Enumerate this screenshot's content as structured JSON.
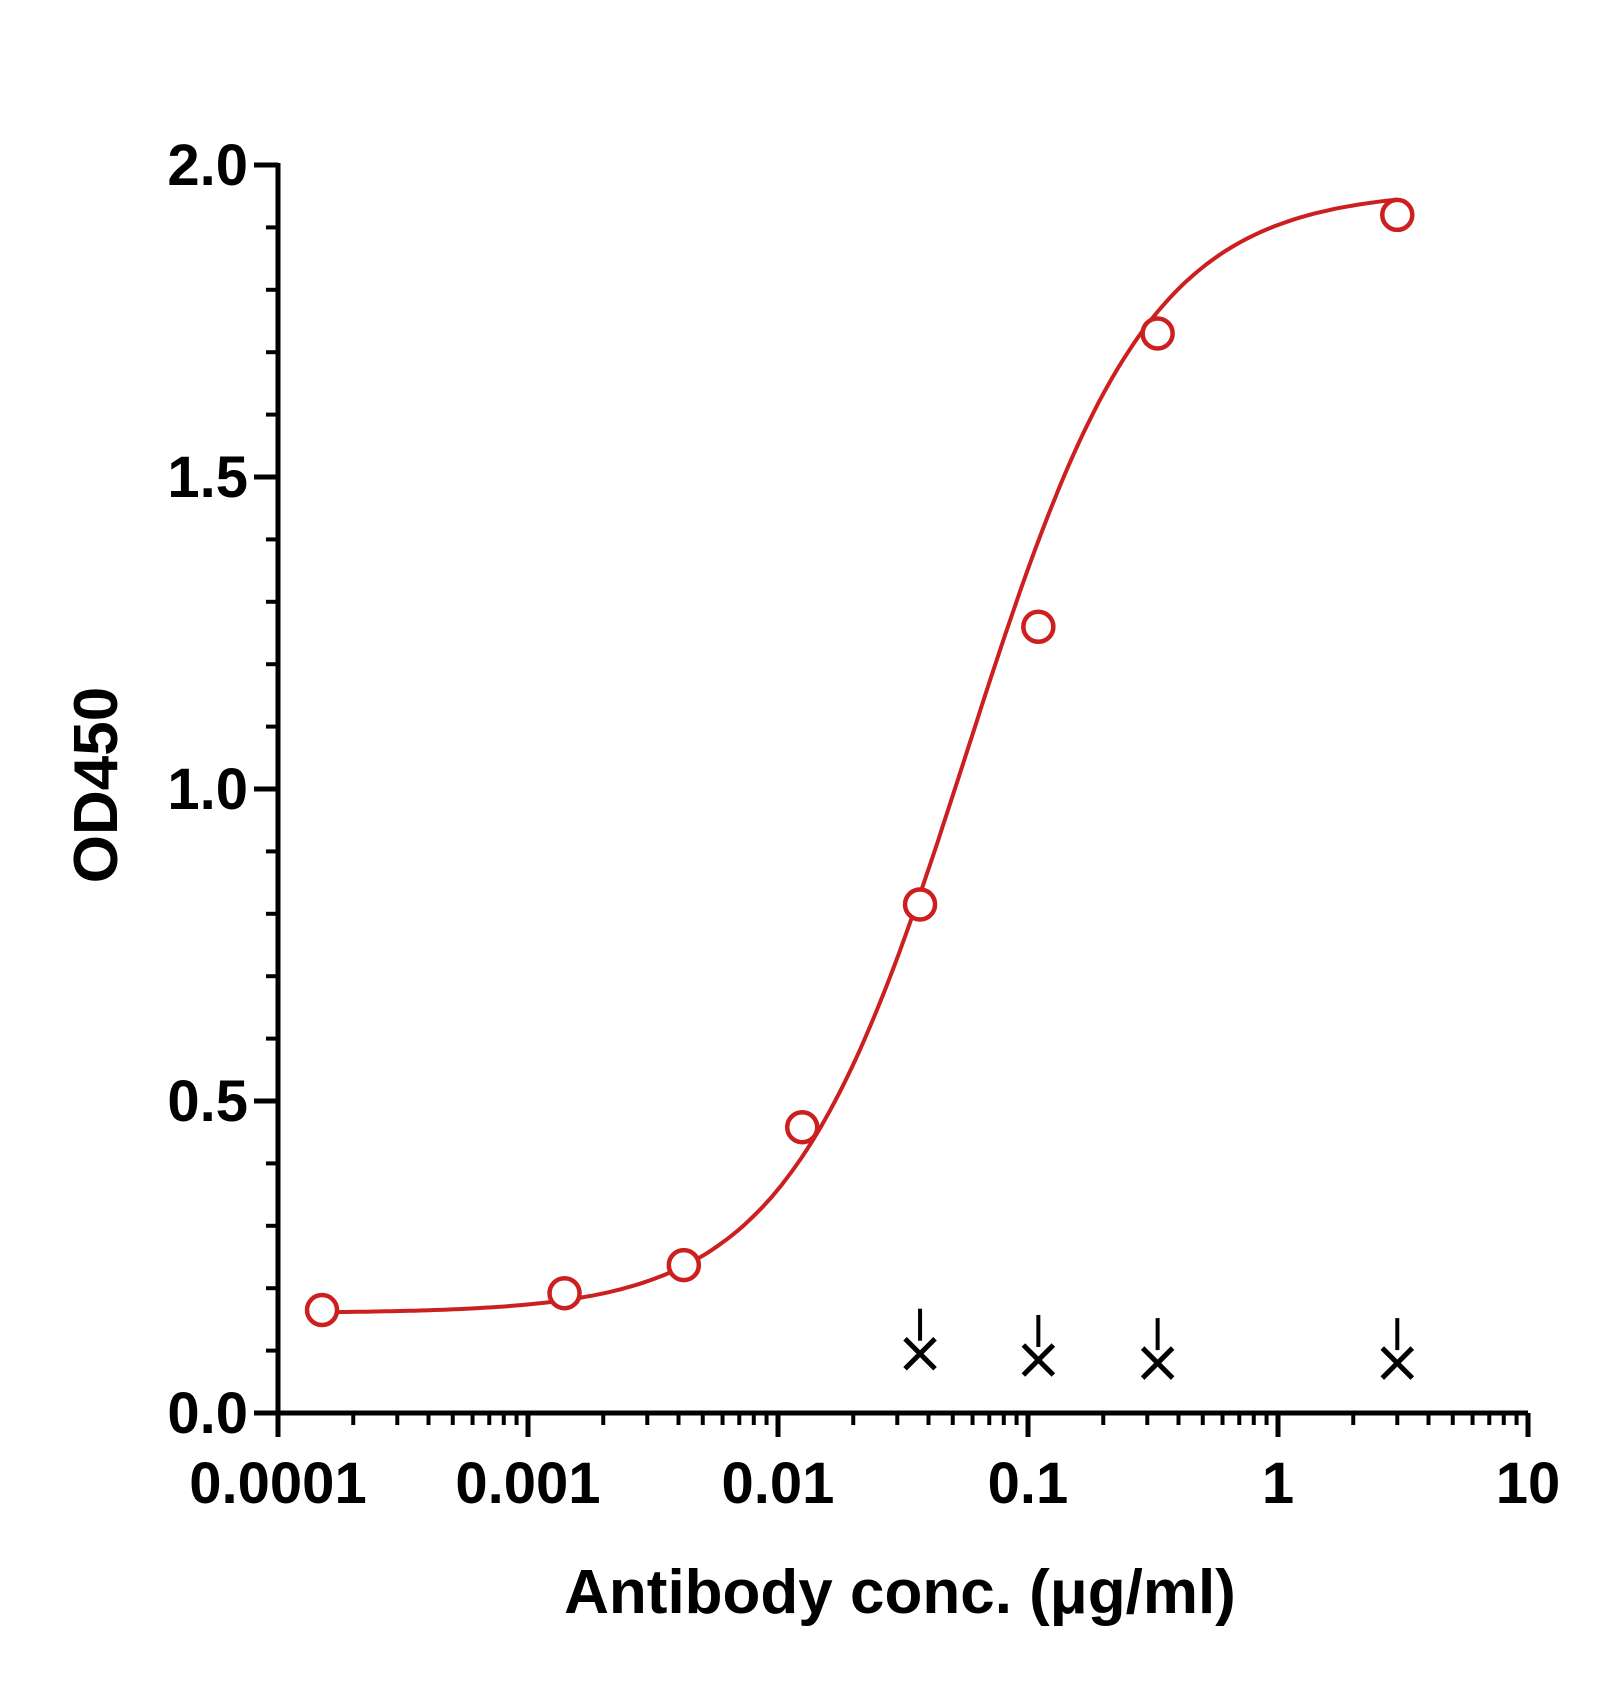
{
  "chart_data": {
    "type": "scatter",
    "title": "",
    "xlabel": "Antibody conc. (μg/ml)",
    "ylabel": "OD450",
    "xscale": "log",
    "xlim": [
      0.0001,
      10
    ],
    "ylim": [
      0,
      2.0
    ],
    "x_ticks": [
      0.0001,
      0.001,
      0.01,
      0.1,
      1,
      10
    ],
    "x_tick_labels": [
      "0.0001",
      "0.001",
      "0.01",
      "0.1",
      "1",
      "10"
    ],
    "y_ticks": [
      0,
      0.5,
      1.0,
      1.5,
      2.0
    ],
    "y_tick_labels": [
      "0.0",
      "0.5",
      "1.0",
      "1.5",
      "2.0"
    ],
    "y_minor_step": 0.1,
    "grid": false,
    "legend": "none",
    "series": [
      {
        "marker": "open-circle",
        "color": "#cc1f1f",
        "x": [
          0.00015,
          0.0014,
          0.0042,
          0.0125,
          0.037,
          0.11,
          0.33,
          3.0
        ],
        "y": [
          0.165,
          0.192,
          0.237,
          0.458,
          0.815,
          1.26,
          1.73,
          1.92
        ],
        "fit": {
          "type": "4PL",
          "bottom": 0.16,
          "top": 1.96,
          "ec50": 0.057,
          "hill": 1.2
        }
      },
      {
        "marker": "x",
        "color": "#000000",
        "x": [
          0.037,
          0.11,
          0.33,
          3.0
        ],
        "y": [
          0.095,
          0.085,
          0.08,
          0.08
        ]
      }
    ]
  }
}
